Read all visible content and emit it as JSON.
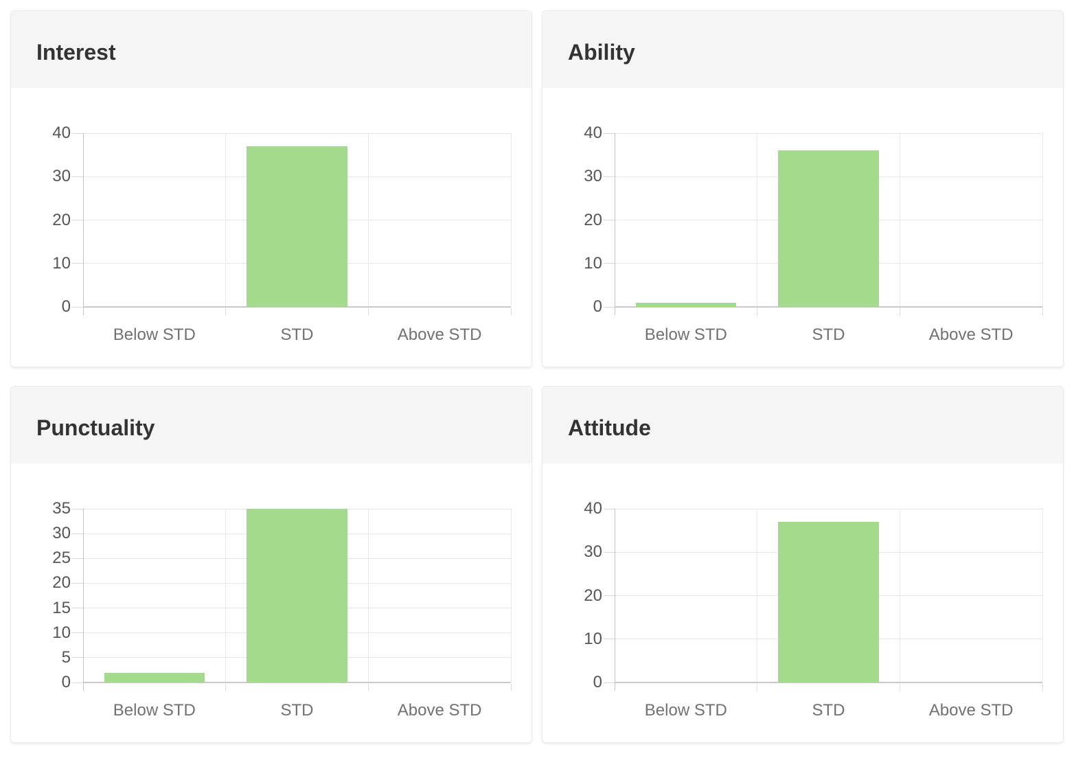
{
  "page": {
    "background_color": "#ffffff",
    "card_header_color": "#f5f5f5",
    "card_border_color": "#ebebeb",
    "title_color": "#333333",
    "axis_label_color": "#555555",
    "category_label_color": "#717171",
    "gridline_color": "#e7e7e7",
    "baseline_color": "#c9c9c9",
    "bar_color": "#a3da8c"
  },
  "chart_data": [
    {
      "type": "bar",
      "title": "Interest",
      "categories": [
        "Below STD",
        "STD",
        "Above STD"
      ],
      "values": [
        0,
        37,
        0
      ],
      "xlabel": "",
      "ylabel": "",
      "ylim": [
        0,
        40
      ],
      "yticks": [
        0,
        10,
        20,
        30,
        40
      ],
      "grid": true,
      "legend_position": "none",
      "bar_color": "#a3da8c"
    },
    {
      "type": "bar",
      "title": "Ability",
      "categories": [
        "Below STD",
        "STD",
        "Above STD"
      ],
      "values": [
        1,
        36,
        0
      ],
      "xlabel": "",
      "ylabel": "",
      "ylim": [
        0,
        40
      ],
      "yticks": [
        0,
        10,
        20,
        30,
        40
      ],
      "grid": true,
      "legend_position": "none",
      "bar_color": "#a3da8c"
    },
    {
      "type": "bar",
      "title": "Punctuality",
      "categories": [
        "Below STD",
        "STD",
        "Above STD"
      ],
      "values": [
        2,
        35,
        0
      ],
      "xlabel": "",
      "ylabel": "",
      "ylim": [
        0,
        35
      ],
      "yticks": [
        0,
        5,
        10,
        15,
        20,
        25,
        30,
        35
      ],
      "grid": true,
      "legend_position": "none",
      "bar_color": "#a3da8c"
    },
    {
      "type": "bar",
      "title": "Attitude",
      "categories": [
        "Below STD",
        "STD",
        "Above STD"
      ],
      "values": [
        0,
        37,
        0
      ],
      "xlabel": "",
      "ylabel": "",
      "ylim": [
        0,
        40
      ],
      "yticks": [
        0,
        10,
        20,
        30,
        40
      ],
      "grid": true,
      "legend_position": "none",
      "bar_color": "#a3da8c"
    }
  ]
}
